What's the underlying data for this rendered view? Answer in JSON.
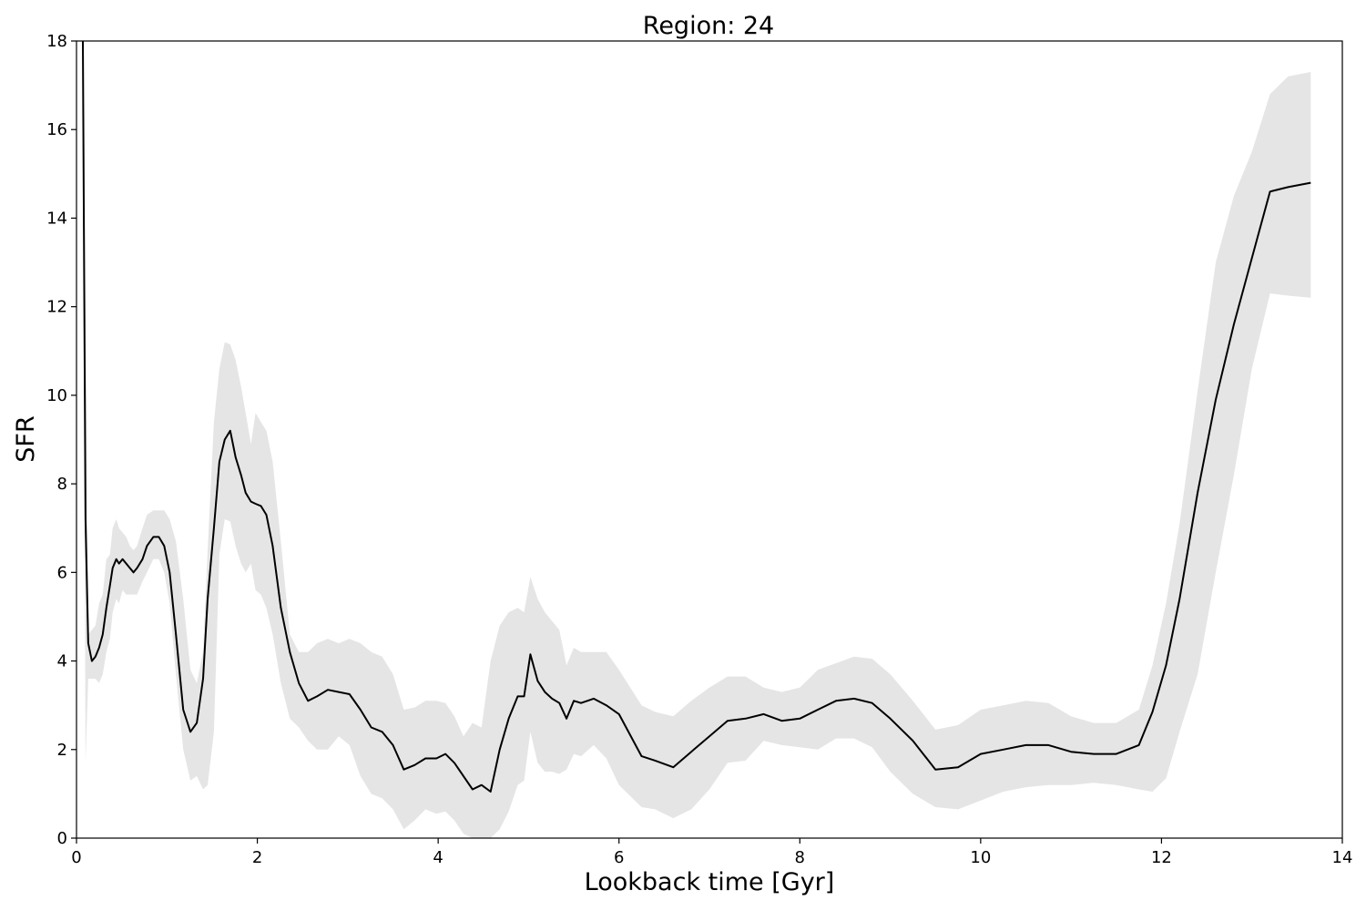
{
  "chart_data": {
    "type": "line",
    "title": "Region: 24",
    "xlabel": "Lookback time [Gyr]",
    "ylabel": "SFR",
    "xlim": [
      0,
      14
    ],
    "ylim": [
      0,
      18
    ],
    "xticks": [
      0,
      2,
      4,
      6,
      8,
      10,
      12,
      14
    ],
    "yticks": [
      0,
      2,
      4,
      6,
      8,
      10,
      12,
      14,
      16,
      18
    ],
    "grid": false,
    "legend": "none",
    "line_color": "#000000",
    "band_color": "#e5e5e5",
    "series": [
      {
        "x": [
          0.07,
          0.1,
          0.13,
          0.17,
          0.21,
          0.25,
          0.29,
          0.33,
          0.37,
          0.4,
          0.44,
          0.47,
          0.51,
          0.55,
          0.59,
          0.63,
          0.67,
          0.73,
          0.78,
          0.85,
          0.91,
          0.97,
          1.03,
          1.1,
          1.18,
          1.26,
          1.33,
          1.4,
          1.45,
          1.52,
          1.58,
          1.64,
          1.7,
          1.76,
          1.82,
          1.87,
          1.93,
          1.98,
          2.04,
          2.1,
          2.17,
          2.26,
          2.36,
          2.46,
          2.56,
          2.66,
          2.78,
          2.9,
          3.02,
          3.14,
          3.26,
          3.38,
          3.5,
          3.62,
          3.74,
          3.86,
          3.98,
          4.08,
          4.18,
          4.28,
          4.38,
          4.48,
          4.58,
          4.68,
          4.78,
          4.88,
          4.95,
          5.02,
          5.1,
          5.18,
          5.26,
          5.34,
          5.42,
          5.5,
          5.58,
          5.72,
          5.86,
          6.0,
          6.25,
          6.4,
          6.6,
          6.8,
          7.0,
          7.2,
          7.4,
          7.6,
          7.8,
          8.0,
          8.2,
          8.4,
          8.6,
          8.8,
          9.0,
          9.25,
          9.5,
          9.75,
          10.0,
          10.25,
          10.5,
          10.75,
          11.0,
          11.25,
          11.5,
          11.75,
          11.9,
          12.05,
          12.2,
          12.4,
          12.6,
          12.8,
          13.0,
          13.2,
          13.4,
          13.65
        ],
        "y": [
          18.0,
          7.2,
          4.4,
          4.0,
          4.1,
          4.3,
          4.6,
          5.2,
          5.7,
          6.1,
          6.3,
          6.2,
          6.3,
          6.2,
          6.1,
          6.0,
          6.1,
          6.3,
          6.6,
          6.8,
          6.8,
          6.6,
          6.0,
          4.6,
          2.9,
          2.4,
          2.6,
          3.6,
          5.4,
          7.0,
          8.5,
          9.0,
          9.2,
          8.6,
          8.2,
          7.8,
          7.6,
          7.55,
          7.5,
          7.3,
          6.6,
          5.2,
          4.2,
          3.5,
          3.1,
          3.2,
          3.35,
          3.3,
          3.25,
          2.9,
          2.5,
          2.4,
          2.1,
          1.55,
          1.65,
          1.8,
          1.8,
          1.9,
          1.7,
          1.4,
          1.1,
          1.2,
          1.05,
          2.0,
          2.7,
          3.2,
          3.2,
          4.15,
          3.55,
          3.3,
          3.15,
          3.05,
          2.7,
          3.1,
          3.05,
          3.15,
          3.0,
          2.8,
          1.85,
          1.75,
          1.6,
          1.95,
          2.3,
          2.65,
          2.7,
          2.8,
          2.65,
          2.7,
          2.9,
          3.1,
          3.15,
          3.05,
          2.7,
          2.2,
          1.55,
          1.6,
          1.9,
          2.0,
          2.1,
          2.1,
          1.95,
          1.9,
          1.9,
          2.1,
          2.85,
          3.9,
          5.4,
          7.8,
          9.9,
          11.6,
          13.1,
          14.6,
          14.7,
          14.8
        ],
        "lower": [
          18.0,
          1.7,
          3.6,
          3.6,
          3.6,
          3.5,
          3.7,
          4.2,
          4.5,
          5.1,
          5.4,
          5.3,
          5.6,
          5.5,
          5.5,
          5.5,
          5.5,
          5.8,
          6.0,
          6.3,
          6.3,
          6.0,
          5.3,
          3.7,
          2.0,
          1.3,
          1.4,
          1.1,
          1.2,
          2.4,
          6.4,
          7.2,
          7.15,
          6.6,
          6.2,
          6.0,
          6.2,
          5.6,
          5.5,
          5.2,
          4.6,
          3.5,
          2.7,
          2.5,
          2.2,
          2.0,
          2.0,
          2.3,
          2.1,
          1.4,
          1.0,
          0.9,
          0.65,
          0.2,
          0.4,
          0.65,
          0.55,
          0.6,
          0.4,
          0.1,
          0.0,
          0.0,
          0.0,
          0.2,
          0.6,
          1.2,
          1.3,
          2.4,
          1.7,
          1.5,
          1.5,
          1.45,
          1.55,
          1.9,
          1.85,
          2.1,
          1.8,
          1.2,
          0.7,
          0.65,
          0.45,
          0.65,
          1.1,
          1.7,
          1.75,
          2.2,
          2.1,
          2.05,
          2.0,
          2.25,
          2.25,
          2.05,
          1.5,
          1.0,
          0.7,
          0.65,
          0.85,
          1.05,
          1.15,
          1.2,
          1.2,
          1.25,
          1.2,
          1.1,
          1.05,
          1.35,
          2.4,
          3.7,
          6.0,
          8.2,
          10.6,
          12.3,
          12.25,
          12.2
        ],
        "upper": [
          18.0,
          12.0,
          4.6,
          4.7,
          4.8,
          5.3,
          5.5,
          6.3,
          6.4,
          7.0,
          7.2,
          7.0,
          6.9,
          6.8,
          6.6,
          6.5,
          6.6,
          7.0,
          7.3,
          7.4,
          7.4,
          7.4,
          7.2,
          6.7,
          5.4,
          3.8,
          3.5,
          4.2,
          6.5,
          9.4,
          10.6,
          11.2,
          11.15,
          10.8,
          10.2,
          9.6,
          8.9,
          9.6,
          9.4,
          9.2,
          8.5,
          6.7,
          4.6,
          4.2,
          4.2,
          4.4,
          4.5,
          4.4,
          4.5,
          4.4,
          4.2,
          4.1,
          3.7,
          2.9,
          2.95,
          3.1,
          3.1,
          3.05,
          2.75,
          2.3,
          2.6,
          2.5,
          4.0,
          4.8,
          5.1,
          5.2,
          5.1,
          5.9,
          5.4,
          5.1,
          4.9,
          4.7,
          3.9,
          4.3,
          4.2,
          4.2,
          4.2,
          3.8,
          3.0,
          2.85,
          2.75,
          3.1,
          3.4,
          3.65,
          3.65,
          3.4,
          3.3,
          3.4,
          3.8,
          3.95,
          4.1,
          4.05,
          3.7,
          3.1,
          2.45,
          2.55,
          2.9,
          3.0,
          3.1,
          3.05,
          2.75,
          2.6,
          2.6,
          2.9,
          3.9,
          5.3,
          7.1,
          10.1,
          13.0,
          14.5,
          15.5,
          16.8,
          17.2,
          17.3
        ]
      }
    ]
  }
}
